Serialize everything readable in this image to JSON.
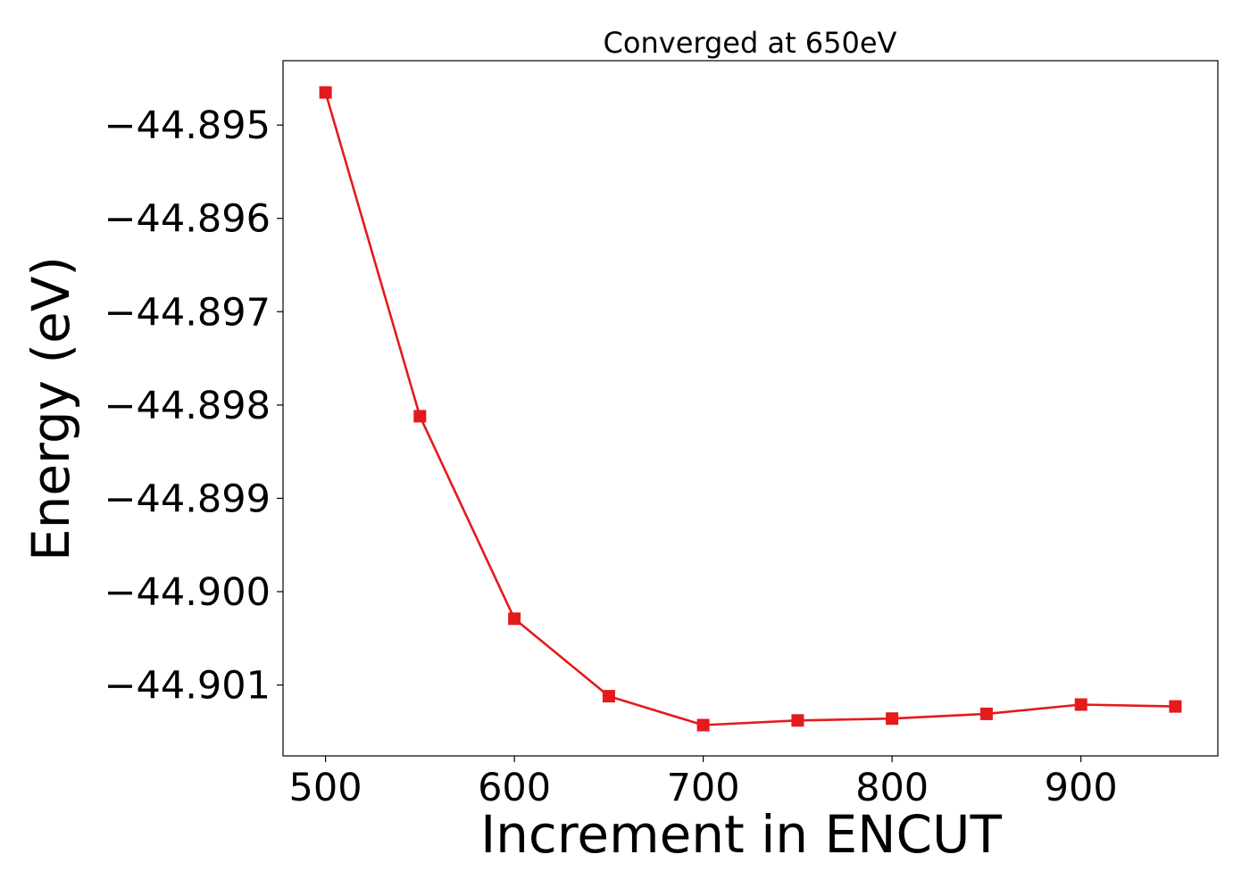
{
  "chart_data": {
    "type": "line",
    "title": "Converged at 650eV",
    "xlabel": "Increment in ENCUT",
    "ylabel": "Energy (eV)",
    "x": [
      500,
      550,
      600,
      650,
      700,
      750,
      800,
      850,
      900,
      950
    ],
    "series": [
      {
        "values": [
          -44.89465,
          -44.89812,
          -44.90029,
          -44.90112,
          -44.90143,
          -44.90138,
          -44.90136,
          -44.90131,
          -44.90121,
          -44.90123
        ],
        "color": "#e41a1c",
        "marker": "square"
      }
    ],
    "xlim": [
      477.5,
      972.5
    ],
    "ylim": [
      -44.90176,
      -44.89431
    ],
    "xticks": [
      500,
      600,
      700,
      800,
      900
    ],
    "xtick_labels": [
      "500",
      "600",
      "700",
      "800",
      "900"
    ],
    "yticks": [
      -44.895,
      -44.896,
      -44.897,
      -44.898,
      -44.899,
      -44.9,
      -44.901
    ],
    "ytick_labels": [
      "−44.895",
      "−44.896",
      "−44.897",
      "−44.898",
      "−44.899",
      "−44.900",
      "−44.901"
    ],
    "grid": false,
    "legend": "none"
  }
}
